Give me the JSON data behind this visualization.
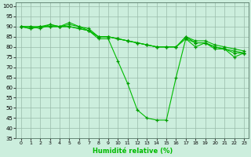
{
  "title": "",
  "xlabel": "Humidité relative (%)",
  "ylabel": "",
  "background_color": "#cceedd",
  "grid_color": "#99bbaa",
  "line_color": "#00bb00",
  "marker_color": "#009900",
  "xlim": [
    -0.5,
    23.5
  ],
  "ylim": [
    35,
    102
  ],
  "yticks": [
    35,
    40,
    45,
    50,
    55,
    60,
    65,
    70,
    75,
    80,
    85,
    90,
    95,
    100
  ],
  "xticks": [
    0,
    1,
    2,
    3,
    4,
    5,
    6,
    7,
    8,
    9,
    10,
    11,
    12,
    13,
    14,
    15,
    16,
    17,
    18,
    19,
    20,
    21,
    22,
    23
  ],
  "series": [
    [
      90,
      90,
      89,
      91,
      90,
      91,
      90,
      88,
      84,
      84,
      73,
      62,
      49,
      45,
      44,
      44,
      65,
      84,
      80,
      82,
      79,
      79,
      75,
      77
    ],
    [
      90,
      90,
      90,
      91,
      90,
      92,
      90,
      89,
      85,
      85,
      84,
      83,
      82,
      81,
      80,
      80,
      80,
      85,
      83,
      83,
      81,
      80,
      79,
      78
    ],
    [
      90,
      89,
      90,
      90,
      90,
      90,
      89,
      88,
      85,
      85,
      84,
      83,
      82,
      81,
      80,
      80,
      80,
      85,
      82,
      82,
      80,
      79,
      78,
      77
    ],
    [
      90,
      89,
      90,
      90,
      90,
      90,
      89,
      88,
      85,
      85,
      84,
      83,
      82,
      81,
      80,
      80,
      80,
      84,
      82,
      82,
      80,
      79,
      77,
      77
    ]
  ]
}
